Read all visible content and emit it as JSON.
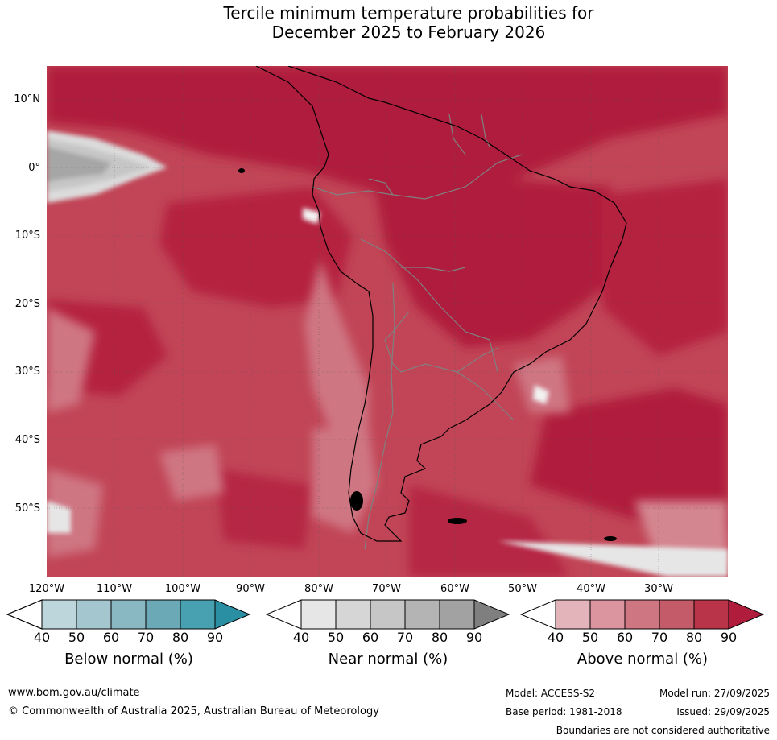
{
  "title_line1": "Tercile minimum temperature probabilities for",
  "title_line2": "December 2025 to February 2026",
  "map": {
    "lat_labels": [
      "10°N",
      "0°",
      "10°S",
      "20°S",
      "30°S",
      "40°S",
      "50°S"
    ],
    "lon_labels": [
      "120°W",
      "110°W",
      "100°W",
      "90°W",
      "80°W",
      "70°W",
      "60°W",
      "50°W",
      "40°W",
      "30°W"
    ]
  },
  "legends": [
    {
      "label": "Below normal (%)",
      "ticks": [
        "40",
        "50",
        "60",
        "70",
        "80",
        "90"
      ],
      "colors": [
        "#ffffff",
        "#bcd6dc",
        "#a4c7cf",
        "#89b7c2",
        "#6aa9b5",
        "#47a1b0",
        "#2a8fa3"
      ]
    },
    {
      "label": "Near normal (%)",
      "ticks": [
        "40",
        "50",
        "60",
        "70",
        "80",
        "90"
      ],
      "colors": [
        "#ffffff",
        "#e6e6e6",
        "#d6d6d6",
        "#c6c6c6",
        "#b4b4b4",
        "#a2a2a2",
        "#7f7f7f"
      ]
    },
    {
      "label": "Above normal (%)",
      "ticks": [
        "40",
        "50",
        "60",
        "70",
        "80",
        "90"
      ],
      "colors": [
        "#ffffff",
        "#e3b4ba",
        "#db959f",
        "#cf7683",
        "#c45b69",
        "#b93349",
        "#b01c3c"
      ]
    }
  ],
  "footer": {
    "url": "www.bom.gov.au/climate",
    "copyright": "© Commonwealth of Australia 2025, Australian Bureau of Meteorology",
    "model": "Model: ACCESS-S2",
    "model_run": "Model run: 27/09/2025",
    "base_period": "Base period: 1981-2018",
    "issued": "Issued: 29/09/2025",
    "boundaries": "Boundaries are not considered authoritative"
  }
}
